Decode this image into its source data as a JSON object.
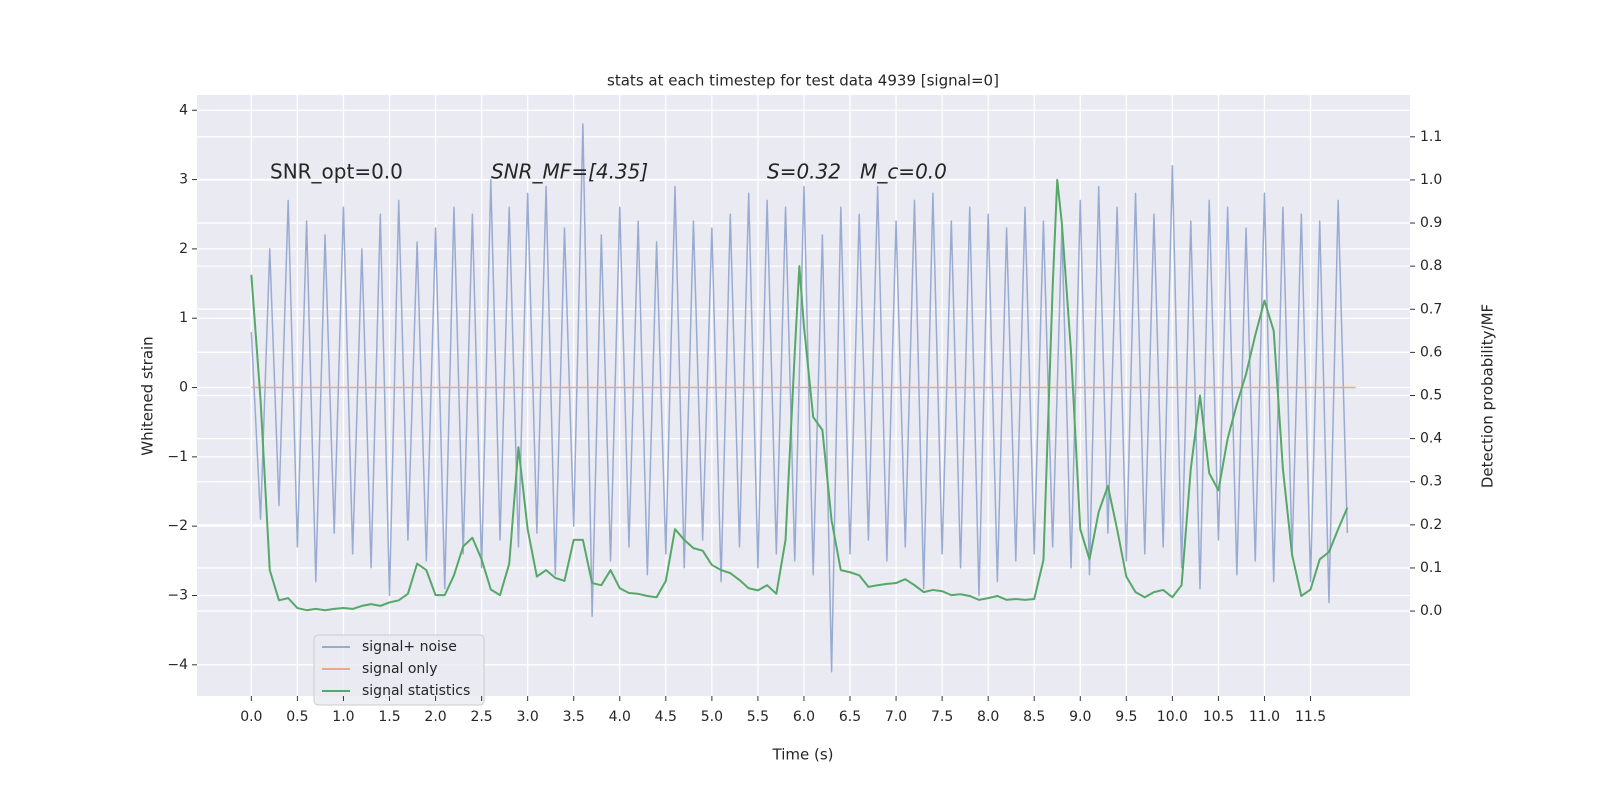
{
  "chart_data": {
    "type": "line",
    "title": "stats at each timestep for test data 4939 [signal=0]",
    "x_label": "Time (s)",
    "y_label": "Whitened strain",
    "y2_label": "Detection probability/MF",
    "annotations": [
      "SNR_opt=0.0",
      "SNR_MF=[4.35]",
      "S=0.32   M_c=0.0"
    ],
    "xlim": [
      -0.59,
      12.58
    ],
    "ylim": [
      -4.45,
      4.22
    ],
    "y2lim": [
      -0.197,
      1.197
    ],
    "xticks": [
      {
        "value": 0,
        "label": "0.0"
      },
      0.5,
      {
        "value": 1,
        "label": "1.0"
      },
      1.5,
      {
        "value": 2,
        "label": "2.0"
      },
      2.5,
      {
        "value": 3,
        "label": "3.0"
      },
      3.5,
      {
        "value": 4,
        "label": "4.0"
      },
      4.5,
      {
        "value": 5,
        "label": "5.0"
      },
      5.5,
      {
        "value": 6,
        "label": "6.0"
      },
      6.5,
      {
        "value": 7,
        "label": "7.0"
      },
      7.5,
      {
        "value": 8,
        "label": "8.0"
      },
      8.5,
      {
        "value": 9,
        "label": "9.0"
      },
      9.5,
      {
        "value": 10,
        "label": "10.0"
      },
      10.5,
      {
        "value": 11,
        "label": "11.0"
      },
      11.5
    ],
    "yticks": [
      {
        "value": -4,
        "label": "−4"
      },
      {
        "value": -3,
        "label": "−3"
      },
      {
        "value": -2,
        "label": "−2"
      },
      {
        "value": -1,
        "label": "−1"
      },
      0,
      1,
      2,
      3,
      4
    ],
    "y2ticks": [
      {
        "value": 0,
        "label": "0.0"
      },
      0.1,
      0.2,
      0.3,
      0.4,
      0.5,
      0.6,
      0.7,
      0.8,
      0.9,
      {
        "value": 1,
        "label": "1.0"
      },
      1.1
    ],
    "grid": true,
    "legend": "lower left",
    "series": [
      {
        "name": "signal+ noise",
        "color": "#9aabd2",
        "x": [
          0,
          0.1,
          0.2,
          0.3,
          0.4,
          0.5,
          0.6,
          0.7,
          0.8,
          0.9,
          1,
          1.1,
          1.2,
          1.3,
          1.4,
          1.5,
          1.6,
          1.7,
          1.8,
          1.9,
          2,
          2.1,
          2.2,
          2.3,
          2.4,
          2.5,
          2.6,
          2.7,
          2.8,
          2.9,
          3,
          3.1,
          3.2,
          3.3,
          3.4,
          3.5,
          3.6,
          3.7,
          3.8,
          3.9,
          4,
          4.1,
          4.2,
          4.3,
          4.4,
          4.5,
          4.6,
          4.7,
          4.8,
          4.9,
          5,
          5.1,
          5.2,
          5.3,
          5.4,
          5.5,
          5.6,
          5.7,
          5.8,
          5.9,
          6,
          6.1,
          6.2,
          6.3,
          6.4,
          6.5,
          6.6,
          6.7,
          6.8,
          6.9,
          7,
          7.1,
          7.2,
          7.3,
          7.4,
          7.5,
          7.6,
          7.7,
          7.8,
          7.9,
          8,
          8.1,
          8.2,
          8.3,
          8.4,
          8.5,
          8.6,
          8.7,
          8.8,
          8.9,
          9,
          9.1,
          9.2,
          9.3,
          9.4,
          9.5,
          9.6,
          9.7,
          9.8,
          9.9,
          10,
          10.1,
          10.2,
          10.3,
          10.4,
          10.5,
          10.6,
          10.7,
          10.8,
          10.9,
          11,
          11.1,
          11.2,
          11.3,
          11.4,
          11.5,
          11.6,
          11.7,
          11.8,
          11.9
        ],
        "values": [
          0.8,
          -1.9,
          2.0,
          -1.7,
          2.7,
          -2.3,
          2.4,
          -2.8,
          2.2,
          -2.1,
          2.6,
          -2.4,
          2.0,
          -2.6,
          2.5,
          -3.0,
          2.7,
          -2.2,
          2.1,
          -2.5,
          2.3,
          -2.9,
          2.6,
          -2.4,
          2.5,
          -2.6,
          3.0,
          -2.2,
          2.6,
          -2.3,
          2.8,
          -2.1,
          2.9,
          -2.7,
          2.3,
          -2.0,
          3.8,
          -3.3,
          2.2,
          -2.5,
          2.6,
          -2.3,
          2.4,
          -2.7,
          2.1,
          -2.4,
          2.9,
          -2.6,
          2.4,
          -2.2,
          2.3,
          -2.8,
          2.5,
          -2.3,
          2.8,
          -2.6,
          2.7,
          -2.4,
          2.6,
          -2.5,
          2.9,
          -2.7,
          2.2,
          -4.1,
          2.6,
          -2.4,
          2.5,
          -2.2,
          2.9,
          -2.5,
          2.4,
          -2.3,
          2.7,
          -2.9,
          2.8,
          -2.4,
          2.4,
          -2.6,
          2.6,
          -3.0,
          2.5,
          -2.8,
          2.3,
          -2.5,
          2.6,
          -2.4,
          2.4,
          -2.3,
          2.3,
          -2.6,
          2.7,
          -2.7,
          2.9,
          -2.1,
          2.6,
          -2.5,
          2.8,
          -2.4,
          2.5,
          -2.3,
          3.2,
          -2.6,
          2.4,
          -2.9,
          2.7,
          -2.2,
          2.6,
          -2.7,
          2.3,
          -2.5,
          2.8,
          -2.8,
          2.6,
          -2.4,
          2.5,
          -2.8,
          2.4,
          -3.1,
          2.7,
          -2.1
        ]
      },
      {
        "name": "signal only",
        "color": "#e9a98a",
        "x": [
          0,
          11.99
        ],
        "values": [
          0,
          0
        ]
      },
      {
        "name": "signal statistics",
        "color": "#55a868",
        "axis": "y2",
        "x": [
          0,
          0.1,
          0.2,
          0.3,
          0.4,
          0.5,
          0.6,
          0.7,
          0.8,
          0.9,
          1,
          1.1,
          1.2,
          1.3,
          1.4,
          1.5,
          1.6,
          1.7,
          1.8,
          1.9,
          2,
          2.1,
          2.2,
          2.3,
          2.4,
          2.5,
          2.6,
          2.7,
          2.8,
          2.9,
          3,
          3.1,
          3.2,
          3.3,
          3.4,
          3.5,
          3.6,
          3.7,
          3.8,
          3.9,
          4,
          4.1,
          4.2,
          4.3,
          4.4,
          4.5,
          4.6,
          4.7,
          4.8,
          4.9,
          5,
          5.1,
          5.2,
          5.3,
          5.4,
          5.5,
          5.6,
          5.7,
          5.8,
          5.9,
          5.95,
          6,
          6.1,
          6.2,
          6.3,
          6.4,
          6.5,
          6.6,
          6.7,
          6.8,
          6.9,
          7,
          7.1,
          7.2,
          7.3,
          7.4,
          7.5,
          7.6,
          7.7,
          7.8,
          7.9,
          8,
          8.1,
          8.2,
          8.3,
          8.4,
          8.5,
          8.6,
          8.7,
          8.75,
          8.8,
          8.9,
          9,
          9.1,
          9.2,
          9.3,
          9.4,
          9.5,
          9.6,
          9.7,
          9.8,
          9.9,
          10,
          10.1,
          10.2,
          10.3,
          10.4,
          10.5,
          10.6,
          10.7,
          10.8,
          10.9,
          11,
          11.1,
          11.2,
          11.3,
          11.4,
          11.5,
          11.6,
          11.7,
          11.8,
          11.9
        ],
        "values": [
          0.78,
          0.49,
          0.095,
          0.025,
          0.03,
          0.007,
          0.002,
          0.005,
          0.002,
          0.005,
          0.007,
          0.005,
          0.012,
          0.016,
          0.012,
          0.02,
          0.025,
          0.04,
          0.11,
          0.095,
          0.037,
          0.037,
          0.083,
          0.15,
          0.17,
          0.12,
          0.05,
          0.037,
          0.11,
          0.38,
          0.19,
          0.08,
          0.095,
          0.077,
          0.07,
          0.165,
          0.165,
          0.065,
          0.06,
          0.095,
          0.053,
          0.042,
          0.04,
          0.035,
          0.032,
          0.07,
          0.19,
          0.165,
          0.146,
          0.14,
          0.107,
          0.095,
          0.088,
          0.072,
          0.053,
          0.048,
          0.06,
          0.04,
          0.165,
          0.6,
          0.8,
          0.66,
          0.45,
          0.42,
          0.21,
          0.095,
          0.09,
          0.083,
          0.056,
          0.06,
          0.063,
          0.065,
          0.074,
          0.06,
          0.044,
          0.049,
          0.046,
          0.037,
          0.039,
          0.035,
          0.026,
          0.03,
          0.035,
          0.026,
          0.028,
          0.026,
          0.028,
          0.118,
          0.75,
          1.0,
          0.9,
          0.6,
          0.19,
          0.12,
          0.23,
          0.29,
          0.19,
          0.08,
          0.044,
          0.032,
          0.044,
          0.049,
          0.032,
          0.06,
          0.33,
          0.5,
          0.32,
          0.28,
          0.4,
          0.48,
          0.55,
          0.64,
          0.72,
          0.65,
          0.33,
          0.13,
          0.035,
          0.05,
          0.12,
          0.137,
          0.19,
          0.24
        ]
      }
    ]
  }
}
